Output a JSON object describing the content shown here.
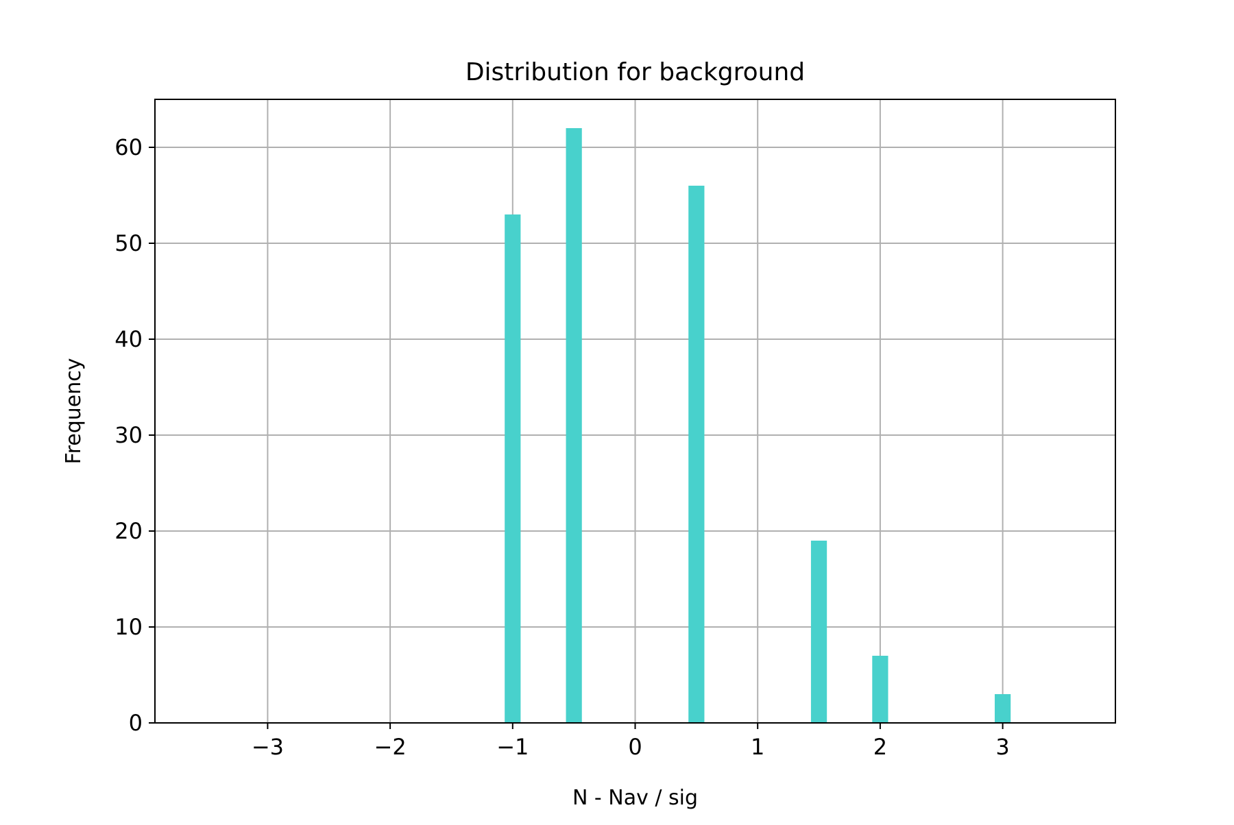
{
  "chart_data": {
    "type": "bar",
    "title": "Distribution for background",
    "xlabel": "N - Nav / sig",
    "ylabel": "Frequency",
    "xlim": [
      -3.92,
      3.92
    ],
    "ylim": [
      0,
      65
    ],
    "xticks": [
      -3,
      -2,
      -1,
      0,
      1,
      2,
      3
    ],
    "xtick_labels": [
      "−3",
      "−2",
      "−1",
      "0",
      "1",
      "2",
      "3"
    ],
    "yticks": [
      0,
      10,
      20,
      30,
      40,
      50,
      60
    ],
    "ytick_labels": [
      "0",
      "10",
      "20",
      "30",
      "40",
      "50",
      "60"
    ],
    "grid": true,
    "bar_width": 0.13,
    "bar_color": "#48D1CC",
    "bars": [
      {
        "x": -1.0,
        "value": 53
      },
      {
        "x": -0.5,
        "value": 62
      },
      {
        "x": 0.5,
        "value": 56
      },
      {
        "x": 1.5,
        "value": 19
      },
      {
        "x": 2.0,
        "value": 7
      },
      {
        "x": 3.0,
        "value": 3
      }
    ]
  }
}
